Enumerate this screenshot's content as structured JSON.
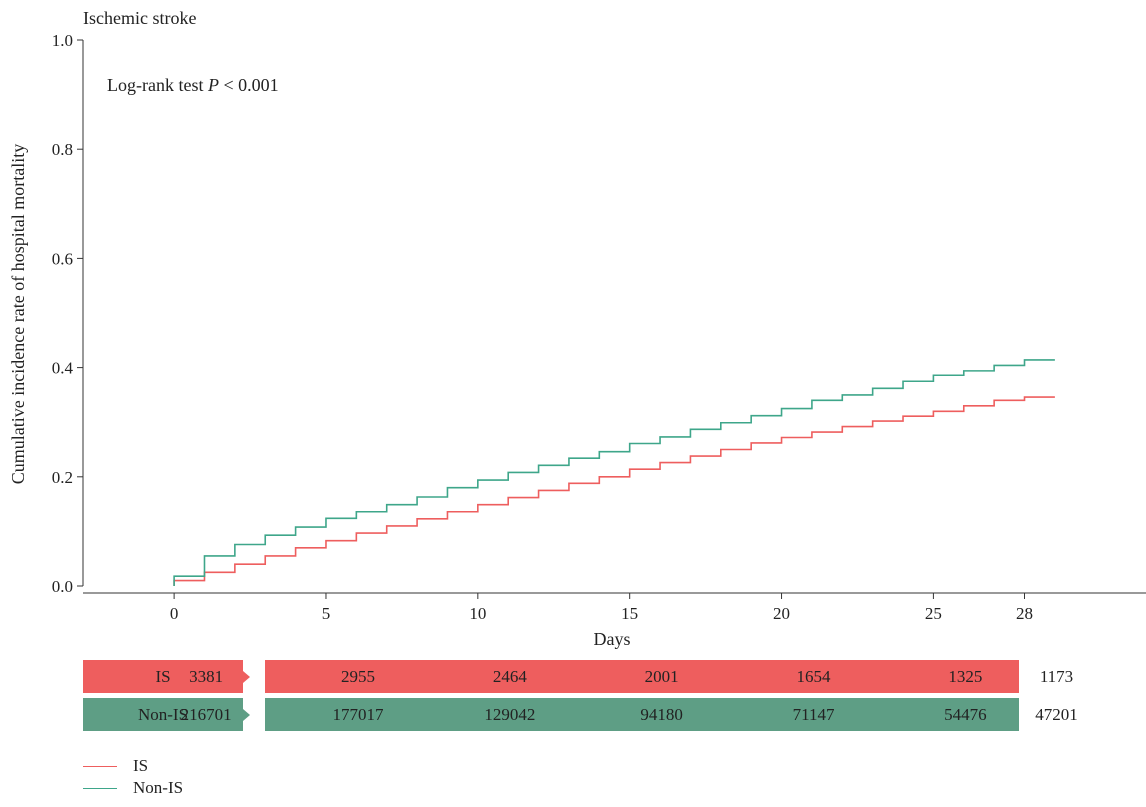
{
  "chart_data": {
    "type": "line",
    "title": "Ischemic stroke",
    "xlabel": "Days",
    "ylabel": "Cumulative incidence rate of hospital mortality",
    "annotation": "Log-rank test ",
    "annotation_p": "P",
    "annotation_tail": " < 0.001",
    "xlim": [
      -3,
      32
    ],
    "ylim": [
      0,
      1.0
    ],
    "x_ticks": [
      0,
      5,
      10,
      15,
      20,
      25,
      28
    ],
    "y_ticks": [
      "0.0",
      "0.2",
      "0.4",
      "0.6",
      "0.8",
      "1.0"
    ],
    "series": [
      {
        "name": "IS",
        "color": "#EE5E5E",
        "step": true,
        "x": [
          0,
          1,
          2,
          3,
          4,
          5,
          6,
          7,
          8,
          9,
          10,
          11,
          12,
          13,
          14,
          15,
          16,
          17,
          18,
          19,
          20,
          21,
          22,
          23,
          24,
          25,
          26,
          27,
          28,
          29
        ],
        "y": [
          0.01,
          0.025,
          0.04,
          0.055,
          0.07,
          0.083,
          0.097,
          0.11,
          0.123,
          0.136,
          0.149,
          0.162,
          0.175,
          0.188,
          0.2,
          0.214,
          0.226,
          0.238,
          0.25,
          0.262,
          0.272,
          0.282,
          0.292,
          0.302,
          0.311,
          0.32,
          0.33,
          0.34,
          0.346,
          0.346
        ]
      },
      {
        "name": "Non-IS",
        "color": "#3EA68A",
        "step": true,
        "x": [
          0,
          1,
          2,
          3,
          4,
          5,
          6,
          7,
          8,
          9,
          10,
          11,
          12,
          13,
          14,
          15,
          16,
          17,
          18,
          19,
          20,
          21,
          22,
          23,
          24,
          25,
          26,
          27,
          28,
          29
        ],
        "y": [
          0.018,
          0.055,
          0.076,
          0.093,
          0.108,
          0.124,
          0.136,
          0.149,
          0.163,
          0.18,
          0.194,
          0.208,
          0.221,
          0.234,
          0.246,
          0.261,
          0.273,
          0.287,
          0.299,
          0.312,
          0.325,
          0.34,
          0.35,
          0.362,
          0.375,
          0.386,
          0.394,
          0.404,
          0.414,
          0.414
        ]
      }
    ],
    "risk_table": {
      "rows": [
        {
          "label": "IS",
          "color": "#EE5E5E",
          "values": [
            "3381",
            "2955",
            "2464",
            "2001",
            "1654",
            "1325",
            "1173"
          ]
        },
        {
          "label": "Non-IS",
          "color": "#5E9E85",
          "values": [
            "216701",
            "177017",
            "129042",
            "94180",
            "71147",
            "54476",
            "47201"
          ]
        }
      ]
    },
    "legend": {
      "position": "bottom-left",
      "items": [
        "IS",
        "Non-IS"
      ]
    }
  }
}
